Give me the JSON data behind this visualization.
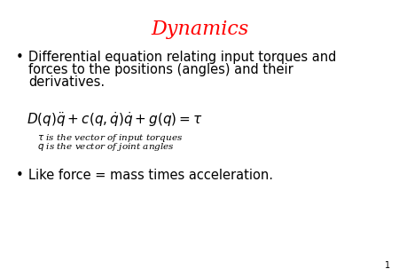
{
  "title": "Dynamics",
  "title_color": "#ff0000",
  "title_fontsize": 16,
  "background_color": "#ffffff",
  "bullet1_line1": "Differential equation relating input torques and",
  "bullet1_line2": "forces to the positions (angles) and their",
  "bullet1_line3": "derivatives.",
  "note1": "τ is the vector of input torques",
  "note2": "q is the vector of joint angles",
  "bullet2": "Like force = mass times acceleration.",
  "slide_number": "1",
  "bullet_fontsize": 10.5,
  "equation_fontsize": 11,
  "note_fontsize": 7.5
}
